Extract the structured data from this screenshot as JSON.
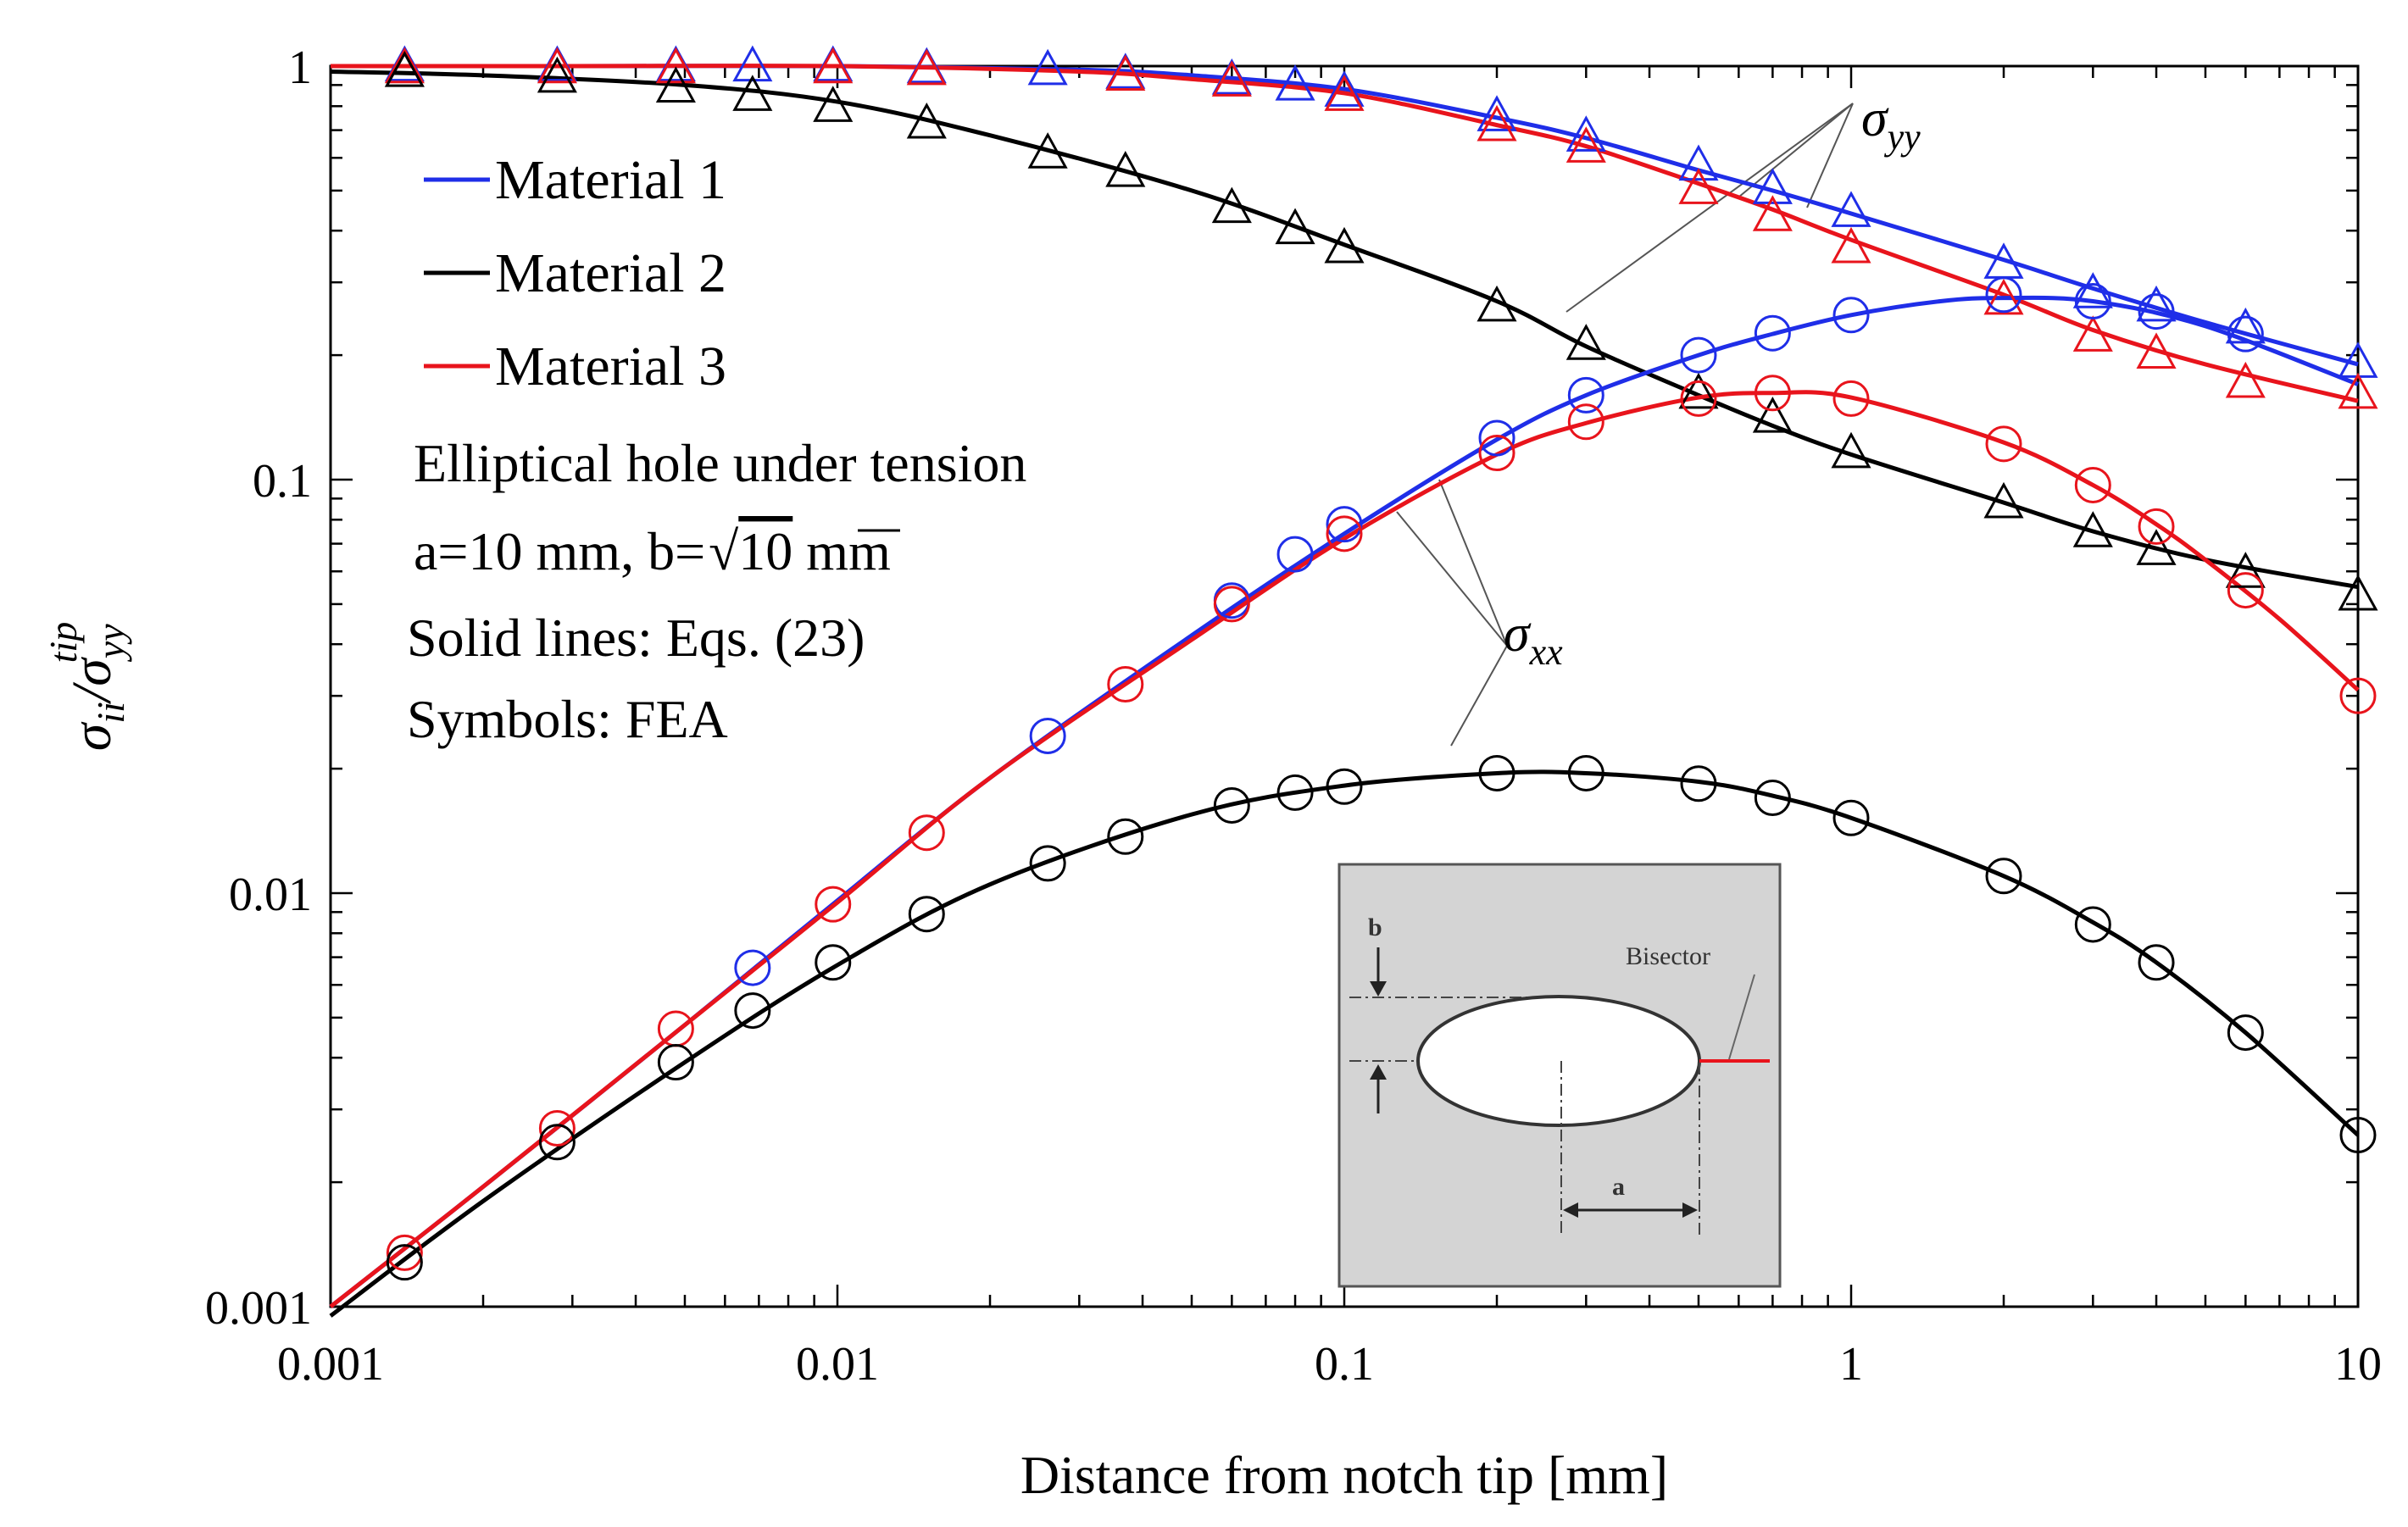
{
  "chart_data": {
    "type": "line",
    "x_scale": "log",
    "y_scale": "log",
    "xlim": [
      0.001,
      10
    ],
    "ylim": [
      0.001,
      1
    ],
    "xlabel": "Distance from notch tip [mm]",
    "ylabel": {
      "main": "σ",
      "sub1": "ii",
      "mid": "/σ",
      "sub2": "yy",
      "sup": "tip"
    },
    "x_ticks": [
      {
        "value": 0.001,
        "label": "0.001"
      },
      {
        "value": 0.01,
        "label": "0.01"
      },
      {
        "value": 0.1,
        "label": "0.1"
      },
      {
        "value": 1,
        "label": "1"
      },
      {
        "value": 10,
        "label": "10"
      }
    ],
    "y_ticks": [
      {
        "value": 0.001,
        "label": "0.001"
      },
      {
        "value": 0.01,
        "label": "0.01"
      },
      {
        "value": 0.1,
        "label": "0.1"
      },
      {
        "value": 1,
        "label": "1"
      }
    ],
    "legend": [
      {
        "label": "Material 1",
        "color": "#1f2ee8"
      },
      {
        "label": "Material 2",
        "color": "#000000"
      },
      {
        "label": "Material 3",
        "color": "#e8141c"
      }
    ],
    "annotations": {
      "line1": "Elliptical hole under tension",
      "line2_prefix": "a=10 mm, b=",
      "line2_radicand": "10",
      "line2_suffix": " mm",
      "line3": "Solid lines: Eqs. (23)",
      "line4": "Symbols: FEA",
      "syy_label": {
        "main": "σ",
        "sub": "yy"
      },
      "sxx_label": {
        "main": "σ",
        "sub": "xx"
      }
    },
    "inset": {
      "b_label": "b",
      "a_label": "a",
      "bisector_label": "Bisector"
    },
    "lines": [
      {
        "name": "Material 1 σyy",
        "color": "#1f2ee8",
        "x": [
          0.001,
          0.003,
          0.01,
          0.03,
          0.05,
          0.1,
          0.2,
          0.3,
          0.5,
          0.7,
          1,
          2,
          3,
          5,
          10
        ],
        "y": [
          1.0,
          1.0,
          1.0,
          0.98,
          0.95,
          0.88,
          0.75,
          0.67,
          0.56,
          0.5,
          0.44,
          0.34,
          0.29,
          0.24,
          0.19
        ]
      },
      {
        "name": "Material 2 σyy",
        "color": "#000000",
        "x": [
          0.001,
          0.002,
          0.005,
          0.01,
          0.02,
          0.05,
          0.1,
          0.2,
          0.3,
          0.5,
          0.7,
          1,
          2,
          3,
          5,
          10
        ],
        "y": [
          0.97,
          0.95,
          0.9,
          0.82,
          0.68,
          0.5,
          0.37,
          0.27,
          0.21,
          0.16,
          0.135,
          0.115,
          0.088,
          0.075,
          0.064,
          0.055
        ]
      },
      {
        "name": "Material 3 σyy",
        "color": "#e8141c",
        "x": [
          0.001,
          0.003,
          0.01,
          0.03,
          0.05,
          0.1,
          0.2,
          0.3,
          0.5,
          0.7,
          1,
          2,
          3,
          5,
          10
        ],
        "y": [
          1.0,
          1.0,
          1.0,
          0.97,
          0.93,
          0.86,
          0.72,
          0.64,
          0.52,
          0.45,
          0.38,
          0.28,
          0.23,
          0.19,
          0.155
        ]
      },
      {
        "name": "Material 1 σxx",
        "color": "#1f2ee8",
        "x": [
          0.001,
          0.002,
          0.005,
          0.01,
          0.02,
          0.05,
          0.1,
          0.2,
          0.3,
          0.5,
          0.7,
          1,
          1.5,
          2,
          3,
          5,
          10
        ],
        "y": [
          0.001,
          0.00195,
          0.0048,
          0.0096,
          0.019,
          0.042,
          0.074,
          0.125,
          0.16,
          0.2,
          0.225,
          0.25,
          0.27,
          0.275,
          0.27,
          0.235,
          0.17
        ]
      },
      {
        "name": "Material 3 σxx",
        "color": "#e8141c",
        "x": [
          0.001,
          0.002,
          0.005,
          0.01,
          0.02,
          0.05,
          0.1,
          0.2,
          0.3,
          0.5,
          0.7,
          1,
          2,
          3,
          4,
          5,
          7,
          10
        ],
        "y": [
          0.001,
          0.00195,
          0.0048,
          0.0095,
          0.019,
          0.041,
          0.072,
          0.115,
          0.137,
          0.158,
          0.162,
          0.158,
          0.123,
          0.097,
          0.078,
          0.064,
          0.046,
          0.031
        ]
      },
      {
        "name": "Material 2 σxx",
        "color": "#000000",
        "x": [
          0.001,
          0.002,
          0.005,
          0.01,
          0.02,
          0.05,
          0.1,
          0.2,
          0.3,
          0.5,
          0.7,
          1,
          2,
          3,
          4,
          6,
          10
        ],
        "y": [
          0.00095,
          0.0018,
          0.0039,
          0.0067,
          0.0105,
          0.0155,
          0.0182,
          0.0195,
          0.0195,
          0.0186,
          0.0172,
          0.0152,
          0.011,
          0.0085,
          0.0068,
          0.0046,
          0.0026
        ]
      }
    ],
    "markers": [
      {
        "name": "Material 1 σyy FEA",
        "shape": "triangle",
        "color": "#1f2ee8",
        "x": [
          0.0014,
          0.0028,
          0.0048,
          0.0068,
          0.0098,
          0.015,
          0.026,
          0.037,
          0.06,
          0.08,
          0.1,
          0.2,
          0.3,
          0.5,
          0.7,
          1,
          2,
          3,
          4,
          6,
          10
        ],
        "y": [
          0.99,
          0.99,
          0.99,
          0.99,
          0.99,
          0.98,
          0.97,
          0.95,
          0.92,
          0.89,
          0.86,
          0.75,
          0.67,
          0.57,
          0.5,
          0.44,
          0.33,
          0.28,
          0.26,
          0.23,
          0.19
        ]
      },
      {
        "name": "Material 3 σyy FEA",
        "shape": "triangle",
        "color": "#e8141c",
        "x": [
          0.0014,
          0.0028,
          0.0048,
          0.0098,
          0.015,
          0.037,
          0.06,
          0.1,
          0.2,
          0.3,
          0.5,
          0.7,
          1,
          2,
          3,
          4,
          6,
          10
        ],
        "y": [
          0.98,
          0.98,
          0.98,
          0.98,
          0.97,
          0.94,
          0.91,
          0.84,
          0.71,
          0.63,
          0.5,
          0.43,
          0.36,
          0.27,
          0.22,
          0.2,
          0.17,
          0.16
        ]
      },
      {
        "name": "Material 2 σyy FEA",
        "shape": "triangle",
        "color": "#000000",
        "x": [
          0.0014,
          0.0028,
          0.0048,
          0.0068,
          0.0098,
          0.015,
          0.026,
          0.037,
          0.06,
          0.08,
          0.1,
          0.2,
          0.3,
          0.5,
          0.7,
          1,
          2,
          3,
          4,
          6,
          10
        ],
        "y": [
          0.96,
          0.93,
          0.88,
          0.84,
          0.79,
          0.72,
          0.61,
          0.55,
          0.45,
          0.4,
          0.36,
          0.26,
          0.21,
          0.16,
          0.14,
          0.115,
          0.087,
          0.074,
          0.067,
          0.059,
          0.052
        ]
      },
      {
        "name": "Material 1 σxx FEA",
        "shape": "circle",
        "color": "#1f2ee8",
        "x": [
          0.0068,
          0.026,
          0.06,
          0.08,
          0.1,
          0.2,
          0.3,
          0.5,
          0.7,
          1,
          2,
          3,
          4,
          6
        ],
        "y": [
          0.0066,
          0.024,
          0.051,
          0.066,
          0.078,
          0.126,
          0.16,
          0.2,
          0.226,
          0.25,
          0.28,
          0.27,
          0.255,
          0.225
        ]
      },
      {
        "name": "Material 3 σxx FEA",
        "shape": "circle",
        "color": "#e8141c",
        "x": [
          0.0014,
          0.0028,
          0.0048,
          0.0098,
          0.015,
          0.037,
          0.06,
          0.1,
          0.2,
          0.3,
          0.5,
          0.7,
          1,
          2,
          3,
          4,
          6,
          10
        ],
        "y": [
          0.00135,
          0.0027,
          0.0047,
          0.0094,
          0.014,
          0.032,
          0.05,
          0.074,
          0.116,
          0.138,
          0.157,
          0.162,
          0.157,
          0.122,
          0.097,
          0.077,
          0.054,
          0.03
        ]
      },
      {
        "name": "Material 2 σxx FEA",
        "shape": "circle",
        "color": "#000000",
        "x": [
          0.0014,
          0.0028,
          0.0048,
          0.0068,
          0.0098,
          0.015,
          0.026,
          0.037,
          0.06,
          0.08,
          0.1,
          0.2,
          0.3,
          0.5,
          0.7,
          1,
          2,
          3,
          4,
          6,
          10
        ],
        "y": [
          0.00128,
          0.0025,
          0.0039,
          0.0052,
          0.0068,
          0.0089,
          0.0118,
          0.0137,
          0.0163,
          0.0175,
          0.0181,
          0.0195,
          0.0195,
          0.0184,
          0.017,
          0.0152,
          0.011,
          0.0084,
          0.0068,
          0.0046,
          0.0026
        ]
      }
    ]
  }
}
